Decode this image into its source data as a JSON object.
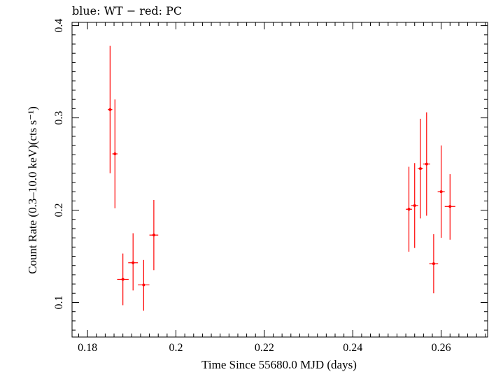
{
  "chart_data": {
    "type": "scatter",
    "title": "blue: WT − red: PC",
    "xlabel": "Time Since 55680.0 MJD (days)",
    "ylabel": "Count Rate (0.3–10.0 keV)(cts s⁻¹)",
    "xlim": [
      0.1765,
      0.2705
    ],
    "ylim": [
      0.0625,
      0.4035
    ],
    "x_ticks": [
      0.18,
      0.2,
      0.22,
      0.24,
      0.26
    ],
    "x_tick_labels": [
      "0.18",
      "0.2",
      "0.22",
      "0.24",
      "0.26"
    ],
    "y_ticks": [
      0.1,
      0.2,
      0.3,
      0.4
    ],
    "y_tick_labels": [
      "0.1",
      "0.2",
      "0.3",
      "0.4"
    ],
    "grid": false,
    "series": [
      {
        "color": "#ff0000",
        "points": [
          {
            "x": 0.1851,
            "xerr": 0.0005,
            "y": 0.309,
            "yerr_low": 0.069,
            "yerr_high": 0.069
          },
          {
            "x": 0.1862,
            "xerr": 0.0006,
            "y": 0.261,
            "yerr_low": 0.059,
            "yerr_high": 0.059
          },
          {
            "x": 0.188,
            "xerr": 0.0013,
            "y": 0.125,
            "yerr_low": 0.028,
            "yerr_high": 0.028
          },
          {
            "x": 0.1903,
            "xerr": 0.0011,
            "y": 0.143,
            "yerr_low": 0.03,
            "yerr_high": 0.032
          },
          {
            "x": 0.1927,
            "xerr": 0.0013,
            "y": 0.119,
            "yerr_low": 0.028,
            "yerr_high": 0.027
          },
          {
            "x": 0.195,
            "xerr": 0.001,
            "y": 0.173,
            "yerr_low": 0.038,
            "yerr_high": 0.038
          },
          {
            "x": 0.2527,
            "xerr": 0.0007,
            "y": 0.201,
            "yerr_low": 0.046,
            "yerr_high": 0.046
          },
          {
            "x": 0.254,
            "xerr": 0.0008,
            "y": 0.205,
            "yerr_low": 0.046,
            "yerr_high": 0.046
          },
          {
            "x": 0.2553,
            "xerr": 0.0006,
            "y": 0.245,
            "yerr_low": 0.054,
            "yerr_high": 0.054
          },
          {
            "x": 0.2567,
            "xerr": 0.0008,
            "y": 0.25,
            "yerr_low": 0.056,
            "yerr_high": 0.056
          },
          {
            "x": 0.2583,
            "xerr": 0.001,
            "y": 0.142,
            "yerr_low": 0.032,
            "yerr_high": 0.032
          },
          {
            "x": 0.26,
            "xerr": 0.0008,
            "y": 0.22,
            "yerr_low": 0.05,
            "yerr_high": 0.05
          },
          {
            "x": 0.262,
            "xerr": 0.0012,
            "y": 0.204,
            "yerr_low": 0.036,
            "yerr_high": 0.035
          }
        ]
      }
    ]
  }
}
